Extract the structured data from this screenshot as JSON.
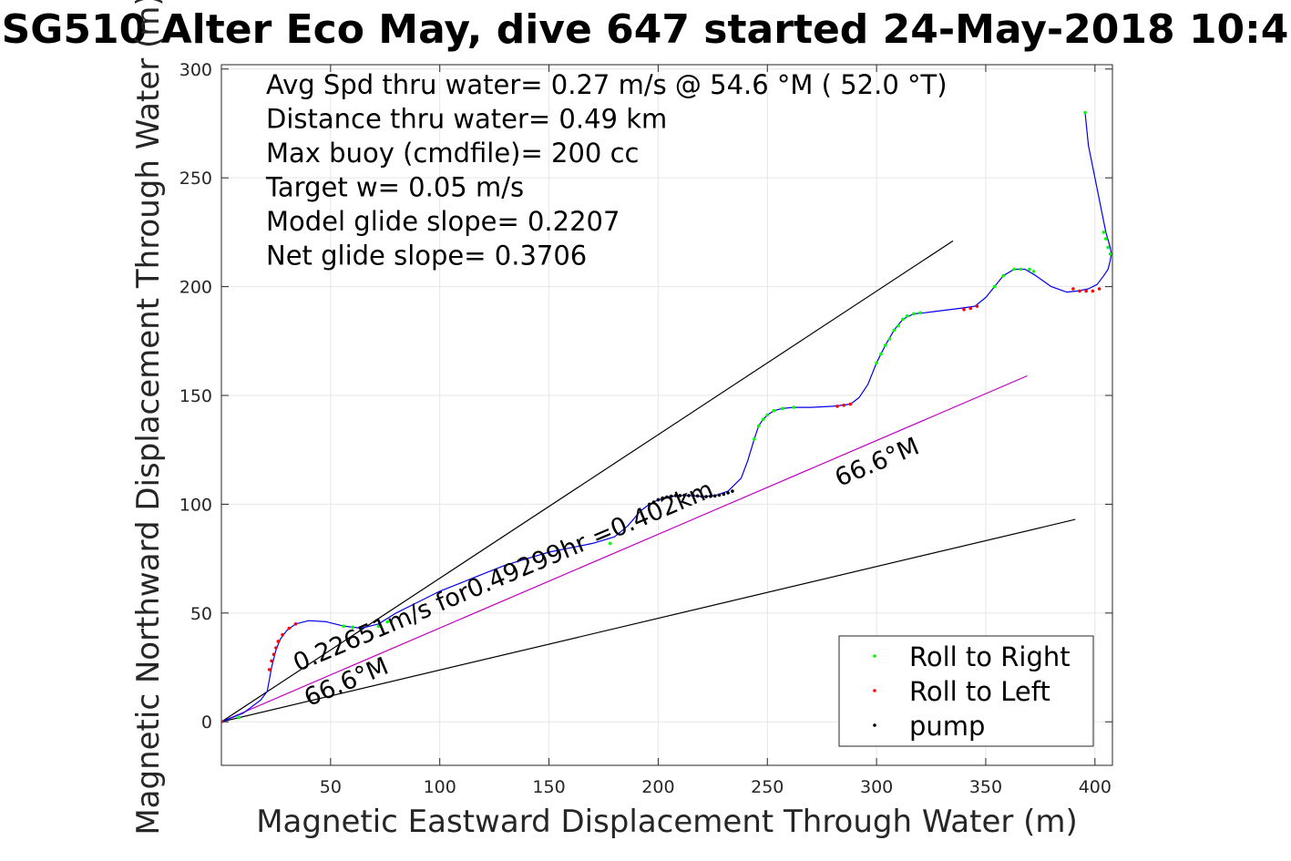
{
  "chart_data": {
    "type": "scatter",
    "title": "SG510 Alter Eco May, dive 647 started 24-May-2018 10:4",
    "xlabel": "Magnetic Eastward Displacement Through Water (m)",
    "ylabel": "Magnetic Northward Displacement Through Water (m)",
    "xlim": [
      0,
      408
    ],
    "ylim": [
      -20,
      302
    ],
    "xticks": [
      50,
      100,
      150,
      200,
      250,
      300,
      350,
      400
    ],
    "yticks": [
      0,
      50,
      100,
      150,
      200,
      250,
      300
    ],
    "grid": true,
    "legend_position": "bottom-right",
    "info_lines": [
      "Avg Spd thru water=  0.27 m/s @  54.6 °M ( 52.0 °T)",
      "Distance thru water=  0.49 km",
      "Max buoy (cmdfile)= 200 cc",
      "Target w= 0.05 m/s",
      "Model glide slope= 0.2207",
      "Net glide slope= 0.3706"
    ],
    "annotations": [
      {
        "text": "0.22651m/s for0.49299hr =0.402km",
        "x": 35,
        "y": 23,
        "angle_deg": 22.9
      },
      {
        "text": "66.6°M",
        "x": 40,
        "y": 7,
        "angle_deg": 22.9
      },
      {
        "text": "66.6°M",
        "x": 283,
        "y": 108,
        "angle_deg": 22.9
      }
    ],
    "reference_lines": [
      {
        "name": "upper-bound",
        "color": "#000000",
        "x": [
          0,
          335
        ],
        "y": [
          0,
          221
        ]
      },
      {
        "name": "heading-line",
        "color": "#c000c0",
        "x": [
          0,
          369
        ],
        "y": [
          0,
          159
        ]
      },
      {
        "name": "lower-bound",
        "color": "#000000",
        "x": [
          0,
          391
        ],
        "y": [
          0,
          93
        ]
      }
    ],
    "track": {
      "name": "track",
      "color": "#0000ee",
      "x": [
        0,
        10,
        18,
        21,
        23,
        25,
        27,
        30,
        34,
        40,
        48,
        56,
        64,
        72,
        80,
        90,
        100,
        110,
        120,
        130,
        140,
        150,
        160,
        170,
        180,
        186,
        192,
        196,
        200,
        205,
        210,
        215,
        220,
        226,
        232,
        238,
        241,
        244,
        246,
        248,
        250,
        253,
        257,
        262,
        270,
        280,
        288,
        292,
        296,
        300,
        304,
        308,
        312,
        317,
        322,
        330,
        338,
        345,
        350,
        354,
        358,
        363,
        368,
        373,
        380,
        387,
        392,
        397,
        401,
        404,
        406,
        407,
        407.5,
        407,
        405,
        403,
        401,
        399,
        397,
        396,
        395.5
      ],
      "y": [
        0,
        4,
        10,
        14,
        25,
        33,
        38,
        42,
        45,
        46.5,
        46,
        44,
        43,
        45,
        50,
        55,
        60,
        64,
        68,
        72,
        75,
        78,
        80,
        82,
        85,
        90,
        97,
        100,
        102,
        103.5,
        104,
        104,
        103.5,
        104,
        106,
        112,
        120,
        130,
        136,
        139,
        141,
        143,
        144,
        144.5,
        144.5,
        145,
        146,
        149,
        155,
        165,
        173,
        180,
        185,
        187.5,
        188,
        189,
        190,
        191,
        195,
        200,
        205,
        208,
        208,
        205,
        200,
        197.5,
        198,
        199,
        201,
        205,
        208,
        212,
        215,
        218,
        225,
        235,
        245,
        255,
        265,
        275,
        280
      ]
    },
    "series": [
      {
        "name": "Roll to Right",
        "color": "#00ff00",
        "x": [
          8,
          56,
          60,
          72,
          76,
          178,
          244,
          246,
          248,
          250,
          253,
          257,
          262,
          300,
          302,
          304,
          306,
          308,
          310,
          312,
          314,
          317,
          320,
          354,
          358,
          363,
          366,
          370,
          372,
          395.5,
          404,
          405,
          406,
          407
        ],
        "y": [
          2,
          44,
          43.5,
          44,
          46,
          82,
          130,
          136,
          139,
          141,
          143,
          144,
          144.5,
          165,
          169,
          173,
          176,
          180,
          182,
          185,
          186.5,
          187.5,
          188,
          200,
          205,
          208,
          208,
          208,
          207,
          280,
          225,
          222,
          218,
          215
        ]
      },
      {
        "name": "Roll to Left",
        "color": "#ff0000",
        "x": [
          0,
          22,
          23,
          24,
          25,
          26,
          28,
          31,
          34,
          282,
          285,
          288,
          340,
          343,
          346,
          390,
          393,
          396,
          399,
          402
        ],
        "y": [
          0,
          24,
          28,
          31,
          34,
          37,
          40,
          43,
          45,
          145,
          145.5,
          146,
          189.5,
          190,
          191,
          199,
          198,
          198,
          198,
          199
        ]
      },
      {
        "name": "pump",
        "color": "#000000",
        "x": [
          196,
          198,
          200,
          202,
          204,
          206,
          208,
          210,
          212,
          214,
          216,
          218,
          220,
          222,
          224,
          226,
          228,
          230,
          232,
          234
        ],
        "y": [
          100,
          101,
          102,
          102.8,
          103.3,
          103.7,
          104,
          104,
          104.1,
          104,
          104,
          103.8,
          103.7,
          103.5,
          103.6,
          103.8,
          104.2,
          104.6,
          105.2,
          106
        ]
      }
    ]
  }
}
